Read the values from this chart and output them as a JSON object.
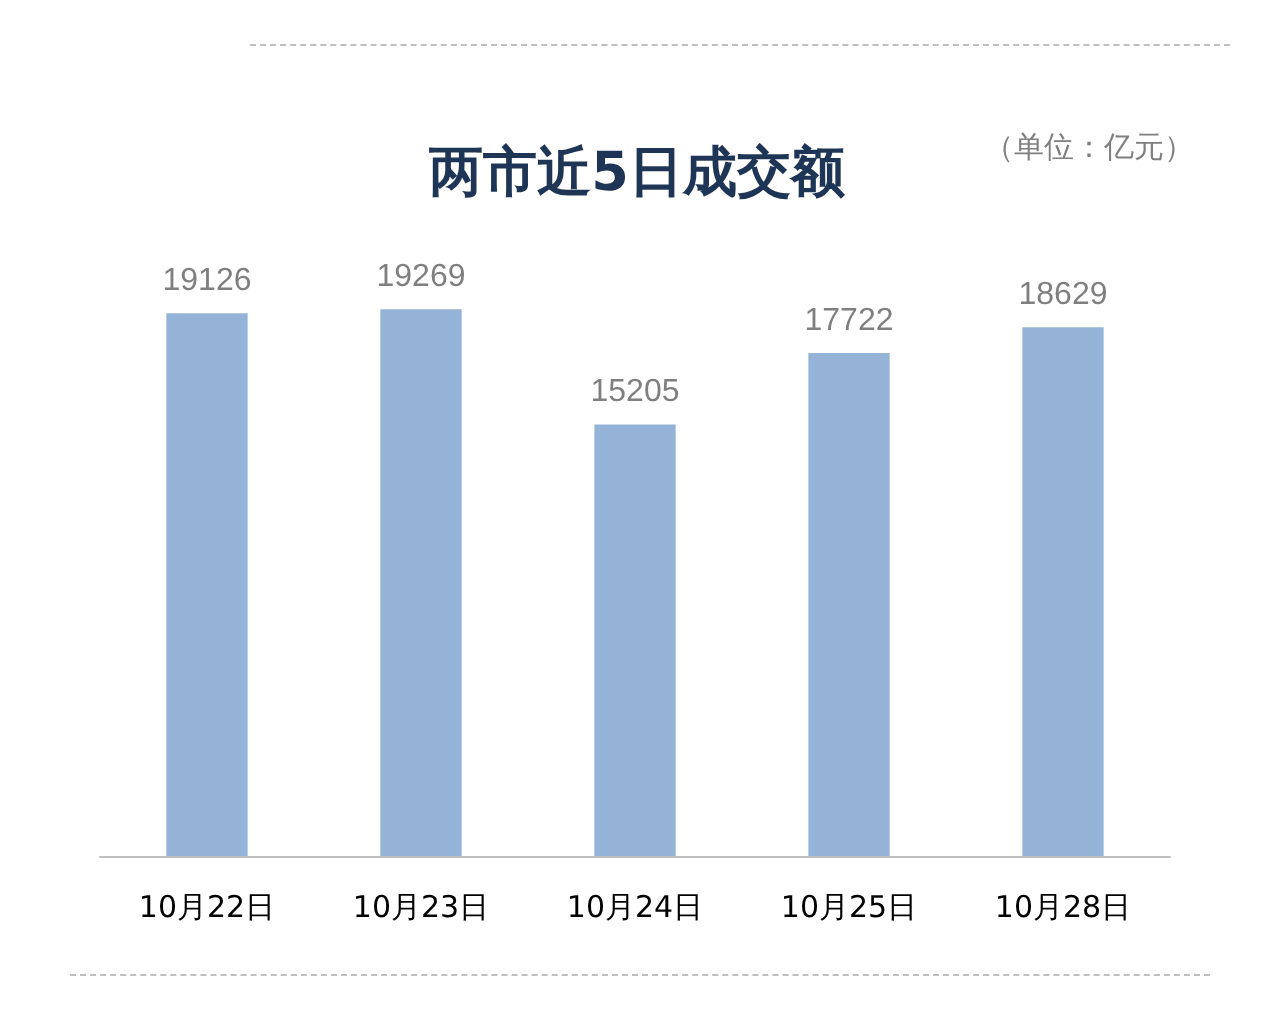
{
  "chart_data": {
    "type": "bar",
    "title": "两市近5日成交额",
    "annotations": [
      "（单位：亿元）"
    ],
    "categories": [
      "10月22日",
      "10月23日",
      "10月24日",
      "10月25日",
      "10月28日"
    ],
    "values": [
      19126,
      19269,
      15205,
      17722,
      18629
    ],
    "color": "#95b3d7",
    "data_labels": true
  }
}
